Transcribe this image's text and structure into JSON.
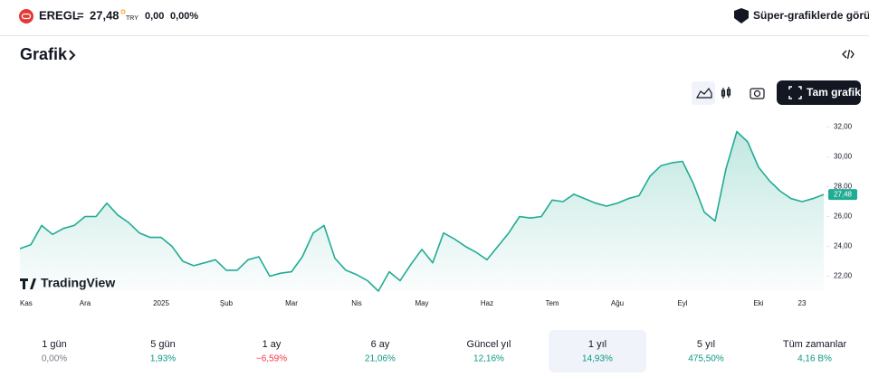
{
  "header": {
    "symbol": "EREGL",
    "price": "27,48",
    "currency": "TRY",
    "change": "0,00",
    "change_percent": "0,00%",
    "super_button": "Süper-grafiklerde görün"
  },
  "section": {
    "title": "Grafik",
    "full_chart": "Tam grafik"
  },
  "chart_data": {
    "type": "line",
    "watermark": "TradingView",
    "color": "#22ab94",
    "categories": [
      "Kas",
      null,
      null,
      null,
      null,
      null,
      "Ara",
      null,
      null,
      null,
      null,
      null,
      null,
      "2025",
      null,
      null,
      null,
      null,
      null,
      "Şub",
      null,
      null,
      null,
      null,
      null,
      "Mar",
      null,
      null,
      null,
      null,
      null,
      "Nis",
      null,
      null,
      null,
      null,
      null,
      "May",
      null,
      null,
      null,
      null,
      null,
      "Haz",
      null,
      null,
      null,
      null,
      null,
      "Tem",
      null,
      null,
      null,
      null,
      null,
      "Ağu",
      null,
      null,
      null,
      null,
      null,
      "Eyl",
      null,
      null,
      null,
      null,
      null,
      null,
      "Eki",
      null,
      null,
      null,
      "23",
      null,
      null
    ],
    "values": [
      23.85,
      24.1,
      25.4,
      24.8,
      25.2,
      25.4,
      26.0,
      26.0,
      26.9,
      26.1,
      25.6,
      24.9,
      24.6,
      24.6,
      24.0,
      23.0,
      22.7,
      22.9,
      23.1,
      22.4,
      22.4,
      23.1,
      23.3,
      22.0,
      22.2,
      22.3,
      23.3,
      24.9,
      25.4,
      23.2,
      22.4,
      22.1,
      21.7,
      21.0,
      22.3,
      21.7,
      22.8,
      23.8,
      22.9,
      24.9,
      24.5,
      24.0,
      23.6,
      23.1,
      24.0,
      24.9,
      26.0,
      25.9,
      26.0,
      27.1,
      27.0,
      27.5,
      27.2,
      26.9,
      26.7,
      26.9,
      27.2,
      27.4,
      28.7,
      29.4,
      29.6,
      29.7,
      28.2,
      26.3,
      25.7,
      29.2,
      31.7,
      31.0,
      29.3,
      28.4,
      27.7,
      27.2,
      27.0,
      27.2,
      27.48
    ],
    "value_labels": {
      "74": "27,48"
    },
    "ylim": [
      21,
      33
    ],
    "yticks": [
      {
        "value": 22,
        "label": "22,00"
      },
      {
        "value": 24,
        "label": "24,00"
      },
      {
        "value": 26,
        "label": "26,00"
      },
      {
        "value": 28,
        "label": "28,00"
      },
      {
        "value": 30,
        "label": "30,00"
      },
      {
        "value": 32,
        "label": "32,00"
      }
    ]
  },
  "periods": [
    {
      "label": "1 gün",
      "change": "0,00%",
      "color": "#787b86"
    },
    {
      "label": "5 gün",
      "change": "1,93%",
      "color": "#089981"
    },
    {
      "label": "1 ay",
      "change": "−6,59%",
      "color": "#f23645"
    },
    {
      "label": "6 ay",
      "change": "21,06%",
      "color": "#089981"
    },
    {
      "label": "Güncel yıl",
      "change": "12,16%",
      "color": "#089981"
    },
    {
      "label": "1 yıl",
      "change": "14,93%",
      "color": "#089981"
    },
    {
      "label": "5 yıl",
      "change": "475,50%",
      "color": "#089981"
    },
    {
      "label": "Tüm zamanlar",
      "change": "4,16 B%",
      "color": "#089981"
    }
  ],
  "selected_period": 5
}
